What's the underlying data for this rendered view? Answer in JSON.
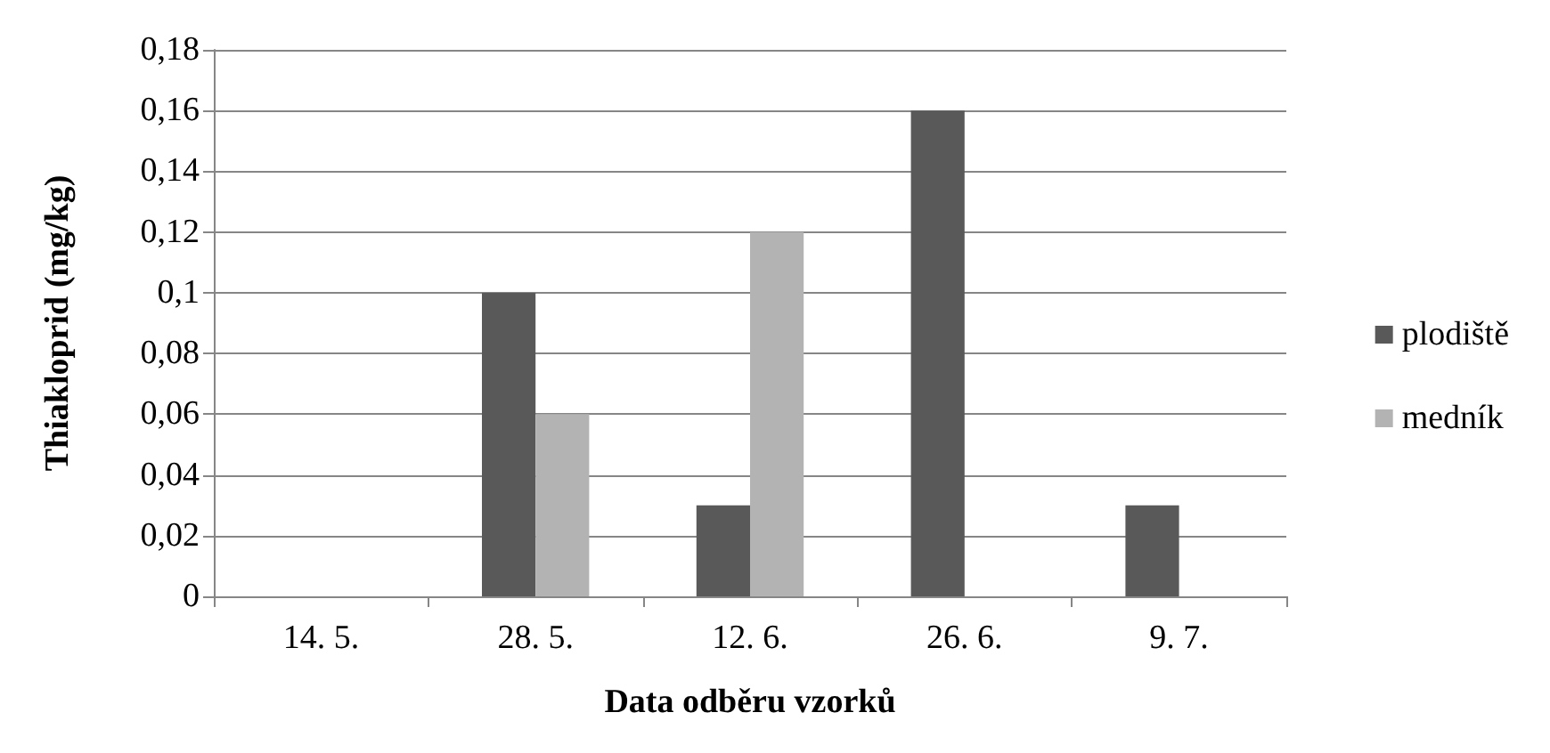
{
  "chart_data": {
    "type": "bar",
    "xlabel": "Data odběru vzorků",
    "ylabel": "Thiakloprid (mg/kg)",
    "categories": [
      "14. 5.",
      "28. 5.",
      "12. 6.",
      "26. 6.",
      "9. 7."
    ],
    "series": [
      {
        "name": "plodiště",
        "color": "#595959",
        "values": [
          0,
          0.1,
          0.03,
          0.16,
          0.03
        ]
      },
      {
        "name": "medník",
        "color": "#b3b3b3",
        "values": [
          0,
          0.06,
          0.12,
          0,
          0
        ]
      }
    ],
    "ylim": [
      0,
      0.18
    ],
    "yticks": [
      0,
      {
        "value": 0.02,
        "label": "0,02"
      },
      {
        "value": 0.04,
        "label": "0,04"
      },
      {
        "value": 0.06,
        "label": "0,06"
      },
      {
        "value": 0.08,
        "label": "0,08"
      },
      {
        "value": 0.1,
        "label": "0,1"
      },
      {
        "value": 0.12,
        "label": "0,12"
      },
      {
        "value": 0.14,
        "label": "0,14"
      },
      {
        "value": 0.16,
        "label": "0,16"
      },
      {
        "value": 0.18,
        "label": "0,18"
      }
    ],
    "grid": "y",
    "legend": "right"
  }
}
